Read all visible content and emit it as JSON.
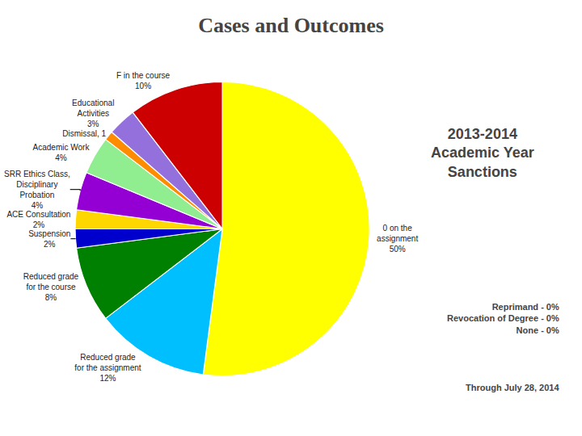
{
  "chart_data": {
    "type": "pie",
    "title": "Cases and Outcomes",
    "subtitle": "2013-2014\nAcademic Year\nSanctions",
    "categories": [
      "0 on the\nassignment\n50%",
      "Reduced grade\nfor the assignment\n12%",
      "Reduced grade\nfor the course\n8%",
      "Suspension\n2%",
      "ACE Consultation\n2%",
      "SRR Ethics Class,\nDisciplinary\nProbation\n4%",
      "Academic Work\n4%",
      "Dismissal, 1",
      "Educational\nActivities\n3%",
      "F in the course\n10%"
    ],
    "values": [
      50,
      12,
      8,
      2,
      2,
      4,
      4,
      1,
      3,
      10
    ],
    "colors": [
      "#FFFF00",
      "#00BFFF",
      "#008000",
      "#0000CD",
      "#FFD700",
      "#9400D3",
      "#90EE90",
      "#FF8C00",
      "#9370DB",
      "#CC0000"
    ],
    "data_labels": true,
    "legend": false,
    "annotations": [
      "Reprimand - 0%\nRevocation of Degree - 0%\nNone - 0%",
      "Through July 28, 2014"
    ]
  }
}
